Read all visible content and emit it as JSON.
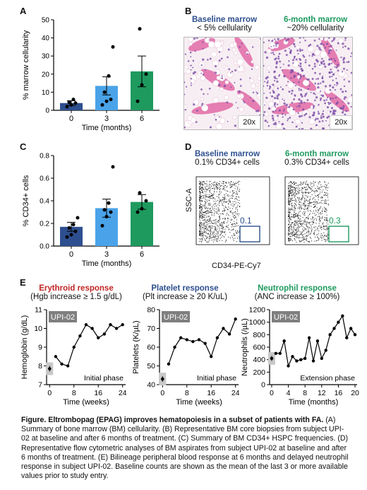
{
  "panel_labels": {
    "A": "A",
    "B": "B",
    "C": "C",
    "D": "D",
    "E": "E"
  },
  "colors": {
    "blue_dark": "#2e4f8f",
    "blue_light": "#4aa3e8",
    "green": "#1e9a5f",
    "red": "#c22424",
    "gray": "#7f7f7f",
    "pink": "#e26aa6",
    "purple": "#7b4da8"
  },
  "panelB": {
    "left_title": "Baseline marrow",
    "left_sub": "< 5% cellularity",
    "left_mag": "20x",
    "right_title": "6-month marrow",
    "right_sub": "~20% cellularity",
    "right_mag": "20x"
  },
  "panelD": {
    "left_title": "Baseline marrow",
    "left_sub": "0.1% CD34+ cells",
    "left_gate": "0.1",
    "right_title": "6-month marrow",
    "right_sub": "0.3% CD34+ cells",
    "right_gate": "0.3",
    "ylabel": "SSC-A",
    "xlabel": "CD34-PE-Cy7"
  },
  "panelE_headers": [
    {
      "title": "Erythroid response",
      "sub": "(Hgb increase ≥ 1.5 g/dL)"
    },
    {
      "title": "Platelet response",
      "sub": "(Plt increase ≥ 20 K/uL)"
    },
    {
      "title": "Neutrophil response",
      "sub": "(ANC increase ≥ 100%)"
    }
  ],
  "caption": {
    "title": "Figure. Eltrombopag (EPAG) improves hematopoiesis in a subset of patients with FA.",
    "body": "(A) Summary of bone marrow (BM) cellularity. (B) Representative BM core biopsies from subject UPI-02 at baseline and after 6 months of treatment. (C) Summary of BM CD34+ HSPC frequencies. (D) Representative flow cytometric analyses of BM aspirates from subject UPI-02 at baseline and after 6 months of treatment. (E) Bilineage peripheral blood response at 6 months and delayed neutrophil response in subject UPI-02. Baseline counts are shown as the mean of the last 3 or more available values prior to study entry."
  },
  "chart_data": [
    {
      "id": "A",
      "type": "bar",
      "categories": [
        "0",
        "3",
        "6"
      ],
      "values": [
        4,
        13.5,
        21.5
      ],
      "errors": [
        1.3,
        5,
        8.5
      ],
      "points": [
        [
          2,
          3,
          4,
          4.5,
          6
        ],
        [
          3,
          5,
          6,
          10,
          19,
          35
        ],
        [
          5,
          14,
          20,
          45
        ]
      ],
      "ylabel": "% marrow cellularity",
      "xlabel": "Time (months)",
      "ylim": [
        0,
        50
      ],
      "yticks": [
        0,
        10,
        20,
        30,
        40,
        50
      ]
    },
    {
      "id": "C",
      "type": "bar",
      "categories": [
        "0",
        "3",
        "6"
      ],
      "values": [
        0.17,
        0.335,
        0.39
      ],
      "errors": [
        0.04,
        0.08,
        0.065
      ],
      "points": [
        [
          0.08,
          0.1,
          0.13,
          0.16,
          0.19,
          0.25
        ],
        [
          0.18,
          0.26,
          0.3,
          0.32,
          0.38,
          0.7
        ],
        [
          0.3,
          0.33,
          0.4,
          0.47
        ]
      ],
      "ylabel": "% CD34+ cells",
      "xlabel": "Time (months)",
      "ylim": [
        0,
        0.8
      ],
      "yticks": [
        "0.0",
        "0.2",
        "0.4",
        "0.6",
        "0.8"
      ]
    },
    {
      "id": "E1",
      "type": "line",
      "badge": "UPI-02",
      "phase": "Initial phase",
      "ylabel": "Hemoglobin (g/dL)",
      "xlabel": "Time (weeks)",
      "xlim": [
        -1,
        25
      ],
      "ylim": [
        7,
        11
      ],
      "xticks": [
        0,
        8,
        16,
        24
      ],
      "yticks": [
        7,
        8,
        9,
        10,
        11
      ],
      "baseline": {
        "x": 0,
        "y": 7.85,
        "err": 0.15
      },
      "x": [
        2,
        4,
        6,
        8,
        10,
        12,
        14,
        16,
        18,
        20,
        22,
        24
      ],
      "y": [
        8.5,
        8.1,
        8.0,
        9.0,
        9.6,
        10.2,
        10.0,
        9.5,
        9.7,
        10.2,
        10.0,
        10.2
      ]
    },
    {
      "id": "E2",
      "type": "line",
      "badge": "UPI-02",
      "phase": "Initial phase",
      "ylabel": "Platelets (K/µL)",
      "xlabel": "Time (weeks)",
      "xlim": [
        -1,
        25
      ],
      "ylim": [
        40,
        80
      ],
      "xticks": [
        0,
        8,
        16,
        24
      ],
      "yticks": [
        40,
        50,
        60,
        70,
        80
      ],
      "baseline": {
        "x": 0,
        "y": 43,
        "err": 1.5
      },
      "x": [
        2,
        4,
        6,
        8,
        10,
        12,
        14,
        16,
        18,
        20,
        22,
        24
      ],
      "y": [
        51,
        60,
        65,
        64,
        63,
        64,
        62,
        55,
        65,
        70,
        67,
        75
      ]
    },
    {
      "id": "E3",
      "type": "line",
      "badge": "UPI-02",
      "phase": "Extension phase",
      "ylabel": "Neutrophils (/µL)",
      "xlabel": "Time (months)",
      "xlim": [
        -0.5,
        20.5
      ],
      "ylim": [
        0,
        1200
      ],
      "xticks": [
        0,
        4,
        8,
        12,
        16,
        20
      ],
      "yticks": [
        0,
        200,
        400,
        600,
        800,
        1000,
        1200
      ],
      "baseline": {
        "x": 0,
        "y": 420,
        "err": 40
      },
      "x": [
        1,
        2,
        3,
        4,
        5,
        6,
        7,
        8,
        9,
        10,
        11,
        12,
        13,
        14,
        15,
        16,
        17,
        18,
        19,
        20
      ],
      "y": [
        500,
        500,
        700,
        300,
        450,
        380,
        400,
        420,
        750,
        380,
        700,
        420,
        550,
        800,
        900,
        1000,
        1100,
        750,
        900,
        800
      ]
    }
  ]
}
